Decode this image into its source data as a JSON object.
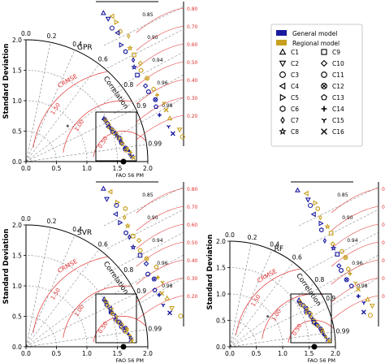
{
  "legend": {
    "models": [
      {
        "label": "General model",
        "color": "#1a1aa0"
      },
      {
        "label": "Regional model",
        "color": "#c8a020"
      }
    ],
    "markers": [
      {
        "label": "C1",
        "symbol": "triangle-up"
      },
      {
        "label": "C2",
        "symbol": "triangle-down"
      },
      {
        "label": "C3",
        "symbol": "circle"
      },
      {
        "label": "C4",
        "symbol": "triangle-left"
      },
      {
        "label": "C5",
        "symbol": "triangle-right"
      },
      {
        "label": "C6",
        "symbol": "hexagon"
      },
      {
        "label": "C7",
        "symbol": "diamond-thin"
      },
      {
        "label": "C8",
        "symbol": "star"
      },
      {
        "label": "C9",
        "symbol": "square"
      },
      {
        "label": "C10",
        "symbol": "diamond"
      },
      {
        "label": "C11",
        "symbol": "octagon"
      },
      {
        "label": "C12",
        "symbol": "x-circle"
      },
      {
        "label": "C13",
        "symbol": "pentagon"
      },
      {
        "label": "C14",
        "symbol": "plus"
      },
      {
        "label": "C15",
        "symbol": "tri-y"
      },
      {
        "label": "C16",
        "symbol": "x"
      }
    ]
  },
  "chart_data": [
    {
      "type": "scatter",
      "subtype": "taylor-diagram",
      "panel_label": "GPR",
      "xlabel": "FAO 56 PM",
      "ylabel": "Standard Deviation",
      "radial_label": "Correlation",
      "crmse_label": "CRMSE",
      "std_ticks": [
        "0.0",
        "0.5",
        "1.0",
        "1.5",
        "2.0"
      ],
      "std_range": [
        0,
        2.0
      ],
      "reference_std": 1.6,
      "correlation_ticks": [
        "0.0",
        "0.2",
        "0.4",
        "0.6",
        "0.8",
        "0.9",
        "0.99"
      ],
      "crmse_contours": [
        "0.50",
        "1.00",
        "1.50"
      ],
      "inset_corr_ticks": [
        "0.85",
        "0.90",
        "0.94",
        "0.96",
        "0.98"
      ],
      "inset_crmse_ticks": [
        "0.80",
        "0.70",
        "0.60",
        "0.50",
        "0.40",
        "0.30",
        "0.20"
      ],
      "outlier": {
        "std": 0.9,
        "corr": 0.76
      }
    },
    {
      "type": "scatter",
      "subtype": "taylor-diagram",
      "panel_label": "SVR",
      "xlabel": "FAO 56 PM",
      "ylabel": "Standard Deviation",
      "radial_label": "Correlation",
      "crmse_label": "CRMSE",
      "std_ticks": [
        "0.0",
        "0.5",
        "1.0",
        "1.5",
        "2.0"
      ],
      "std_range": [
        0,
        2.0
      ],
      "reference_std": 1.6,
      "correlation_ticks": [
        "0.0",
        "0.2",
        "0.4",
        "0.6",
        "0.8",
        "0.9",
        "0.99"
      ],
      "crmse_contours": [
        "0.50",
        "1.00",
        "1.50"
      ],
      "inset_corr_ticks": [
        "0.85",
        "0.90",
        "0.94",
        "0.96",
        "0.98"
      ],
      "inset_crmse_ticks": [
        "0.80",
        "0.70",
        "0.60",
        "0.50",
        "0.40",
        "0.30",
        "0.20"
      ],
      "outlier": null
    },
    {
      "type": "scatter",
      "subtype": "taylor-diagram",
      "panel_label": "RF",
      "xlabel": "FAO 56 PM",
      "ylabel": "Standard Deviation",
      "radial_label": "Correlation",
      "crmse_label": "CRMSE",
      "std_ticks": [
        "0.0",
        "0.5",
        "1.0",
        "1.5",
        "2.0"
      ],
      "std_range": [
        0,
        2.0
      ],
      "reference_std": 1.6,
      "correlation_ticks": [
        "0.0",
        "0.2",
        "0.4",
        "0.6",
        "0.8",
        "0.9",
        "0.99"
      ],
      "crmse_contours": [
        "0.50",
        "1.00",
        "1.50"
      ],
      "inset_corr_ticks": [
        "0.85",
        "0.90",
        "0.94",
        "0.96",
        "0.98"
      ],
      "inset_crmse_ticks": [
        "0.80",
        "0.70",
        "0.60",
        "0.50",
        "0.40",
        "0.30",
        "0.20"
      ],
      "outlier": {
        "std": 0.92,
        "corr": 0.78
      }
    }
  ]
}
